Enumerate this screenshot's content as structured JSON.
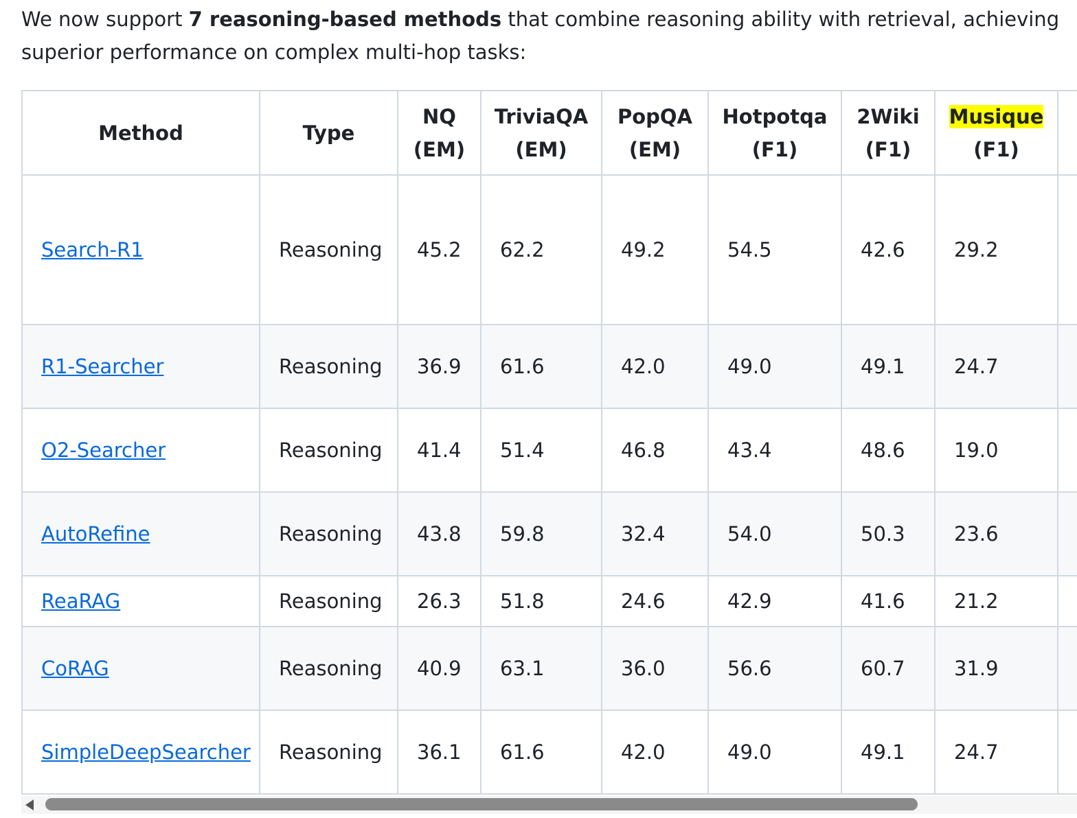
{
  "intro": {
    "before": "We now support ",
    "bold": "7 reasoning-based methods",
    "after": " that combine reasoning ability with retrieval, achieving superior performance on complex multi-hop tasks:"
  },
  "table": {
    "header": [
      [
        "Method"
      ],
      [
        "Type"
      ],
      [
        "NQ",
        "(EM)"
      ],
      [
        "TriviaQA",
        "(EM)"
      ],
      [
        "PopQA",
        "(EM)"
      ],
      [
        "Hotpotqa",
        "(F1)"
      ],
      [
        "2Wiki",
        "(F1)"
      ],
      [
        "Musique",
        "(F1)"
      ]
    ],
    "highlight": "Musique",
    "rows": [
      [
        "Search-R1",
        "Reasoning",
        "45.2",
        "62.2",
        "49.2",
        "54.5",
        "42.6",
        "29.2"
      ],
      [
        "R1-Searcher",
        "Reasoning",
        "36.9",
        "61.6",
        "42.0",
        "49.0",
        "49.1",
        "24.7"
      ],
      [
        "O2-Searcher",
        "Reasoning",
        "41.4",
        "51.4",
        "46.8",
        "43.4",
        "48.6",
        "19.0"
      ],
      [
        "AutoRefine",
        "Reasoning",
        "43.8",
        "59.8",
        "32.4",
        "54.0",
        "50.3",
        "23.6"
      ],
      [
        "ReaRAG",
        "Reasoning",
        "26.3",
        "51.8",
        "24.6",
        "42.9",
        "41.6",
        "21.2"
      ],
      [
        "CoRAG",
        "Reasoning",
        "40.9",
        "63.1",
        "36.0",
        "56.6",
        "60.7",
        "31.9"
      ],
      [
        "SimpleDeepSearcher",
        "Reasoning",
        "36.1",
        "61.6",
        "42.0",
        "49.0",
        "49.1",
        "24.7"
      ]
    ]
  }
}
